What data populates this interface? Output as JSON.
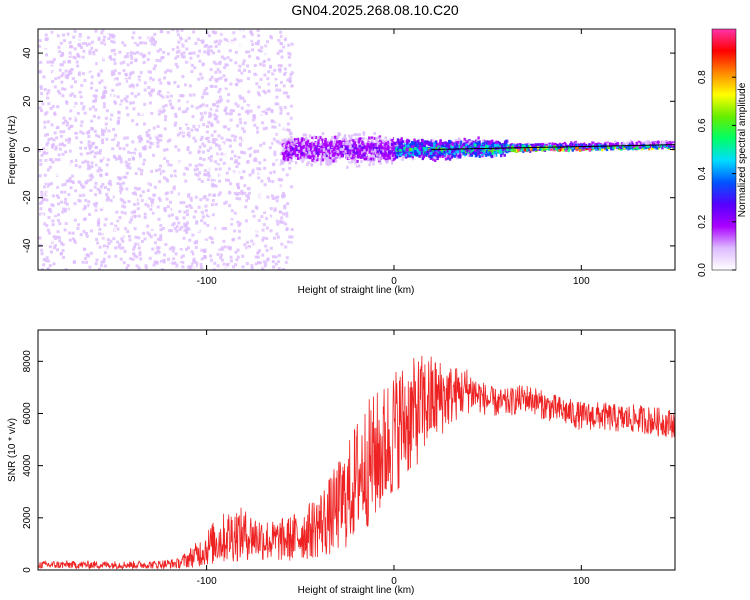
{
  "title": "GN04.2025.268.08.10.C20",
  "colors": {
    "trace": "#ee2222",
    "axis": "#000000",
    "scatter": "#7a1cf0",
    "colormap": [
      "#ff33aa",
      "#ff0000",
      "#ff8800",
      "#ffff00",
      "#66ee00",
      "#00ff66",
      "#00ddff",
      "#0055ff",
      "#5500ff",
      "#aa00ff",
      "#ddbbff",
      "#ffffff"
    ]
  },
  "chart_data": [
    {
      "type": "heatmap",
      "xlabel": "Height of straight line (km)",
      "ylabel": "Frequency (Hz)",
      "xlim": [
        -190,
        150
      ],
      "ylim": [
        -50,
        50
      ],
      "xticks": [
        -100,
        0,
        100
      ],
      "xtick_labels": [
        "-100",
        "0",
        "100"
      ],
      "yticks": [
        -40,
        -20,
        0,
        20,
        40
      ],
      "ytick_labels": [
        "-40",
        "-20",
        "0",
        "20",
        "40"
      ],
      "colorbar": {
        "label": "Normalized spectral amplitude",
        "range": [
          0,
          1
        ],
        "ticks": [
          0,
          0.2,
          0.4,
          0.6,
          0.8
        ],
        "tick_labels": [
          "0.0",
          "0.2",
          "0.4",
          "0.6",
          "0.8"
        ]
      },
      "regions": [
        {
          "x": [
            -190,
            -55
          ],
          "freq_spread": 50,
          "amplitude": 0.08
        },
        {
          "x": [
            -60,
            0
          ],
          "freq_spread": 8,
          "amplitude": 0.2
        },
        {
          "x": [
            0,
            60
          ],
          "freq_spread": 5,
          "amplitude": 0.5
        },
        {
          "x": [
            60,
            150
          ],
          "freq_spread": 2,
          "amplitude": 0.85
        }
      ],
      "center_line": {
        "from": [
          20,
          0
        ],
        "to": [
          150,
          2
        ]
      }
    },
    {
      "type": "line",
      "xlabel": "Height of straight line (km)",
      "ylabel": "SNR (10 * v/v)",
      "xlim": [
        -190,
        150
      ],
      "ylim": [
        0,
        9200
      ],
      "xticks": [
        -100,
        0,
        100
      ],
      "xtick_labels": [
        "-100",
        "0",
        "100"
      ],
      "yticks": [
        0,
        2000,
        4000,
        6000,
        8000
      ],
      "ytick_labels": [
        "0",
        "2000",
        "4000",
        "6000",
        "8000"
      ],
      "series": [
        {
          "x": [
            -190,
            -170,
            -150,
            -130,
            -115,
            -105,
            -95,
            -85,
            -75,
            -65,
            -55,
            -45,
            -35,
            -25,
            -18,
            -12,
            -6,
            0,
            5,
            10,
            15,
            20,
            25,
            30,
            35,
            40,
            45,
            50,
            55,
            60,
            65,
            70,
            75,
            80,
            90,
            100,
            110,
            120,
            130,
            140,
            150
          ],
          "values": [
            200,
            200,
            200,
            200,
            250,
            600,
            1100,
            1400,
            1300,
            1100,
            1200,
            1500,
            2000,
            2800,
            3800,
            4200,
            4600,
            5300,
            5700,
            5900,
            6300,
            6500,
            6600,
            6700,
            6800,
            6900,
            6700,
            6500,
            6400,
            6400,
            6500,
            6600,
            6500,
            6300,
            6100,
            5900,
            5900,
            5800,
            5800,
            5700,
            5600
          ],
          "spread": [
            150,
            150,
            150,
            150,
            200,
            500,
            900,
            1100,
            900,
            800,
            900,
            1100,
            1500,
            2000,
            2400,
            2500,
            2500,
            2500,
            2300,
            2200,
            2000,
            1800,
            1500,
            1200,
            1000,
            900,
            700,
            600,
            550,
            550,
            550,
            550,
            550,
            550,
            550,
            550,
            550,
            550,
            550,
            550,
            550
          ]
        }
      ]
    }
  ]
}
